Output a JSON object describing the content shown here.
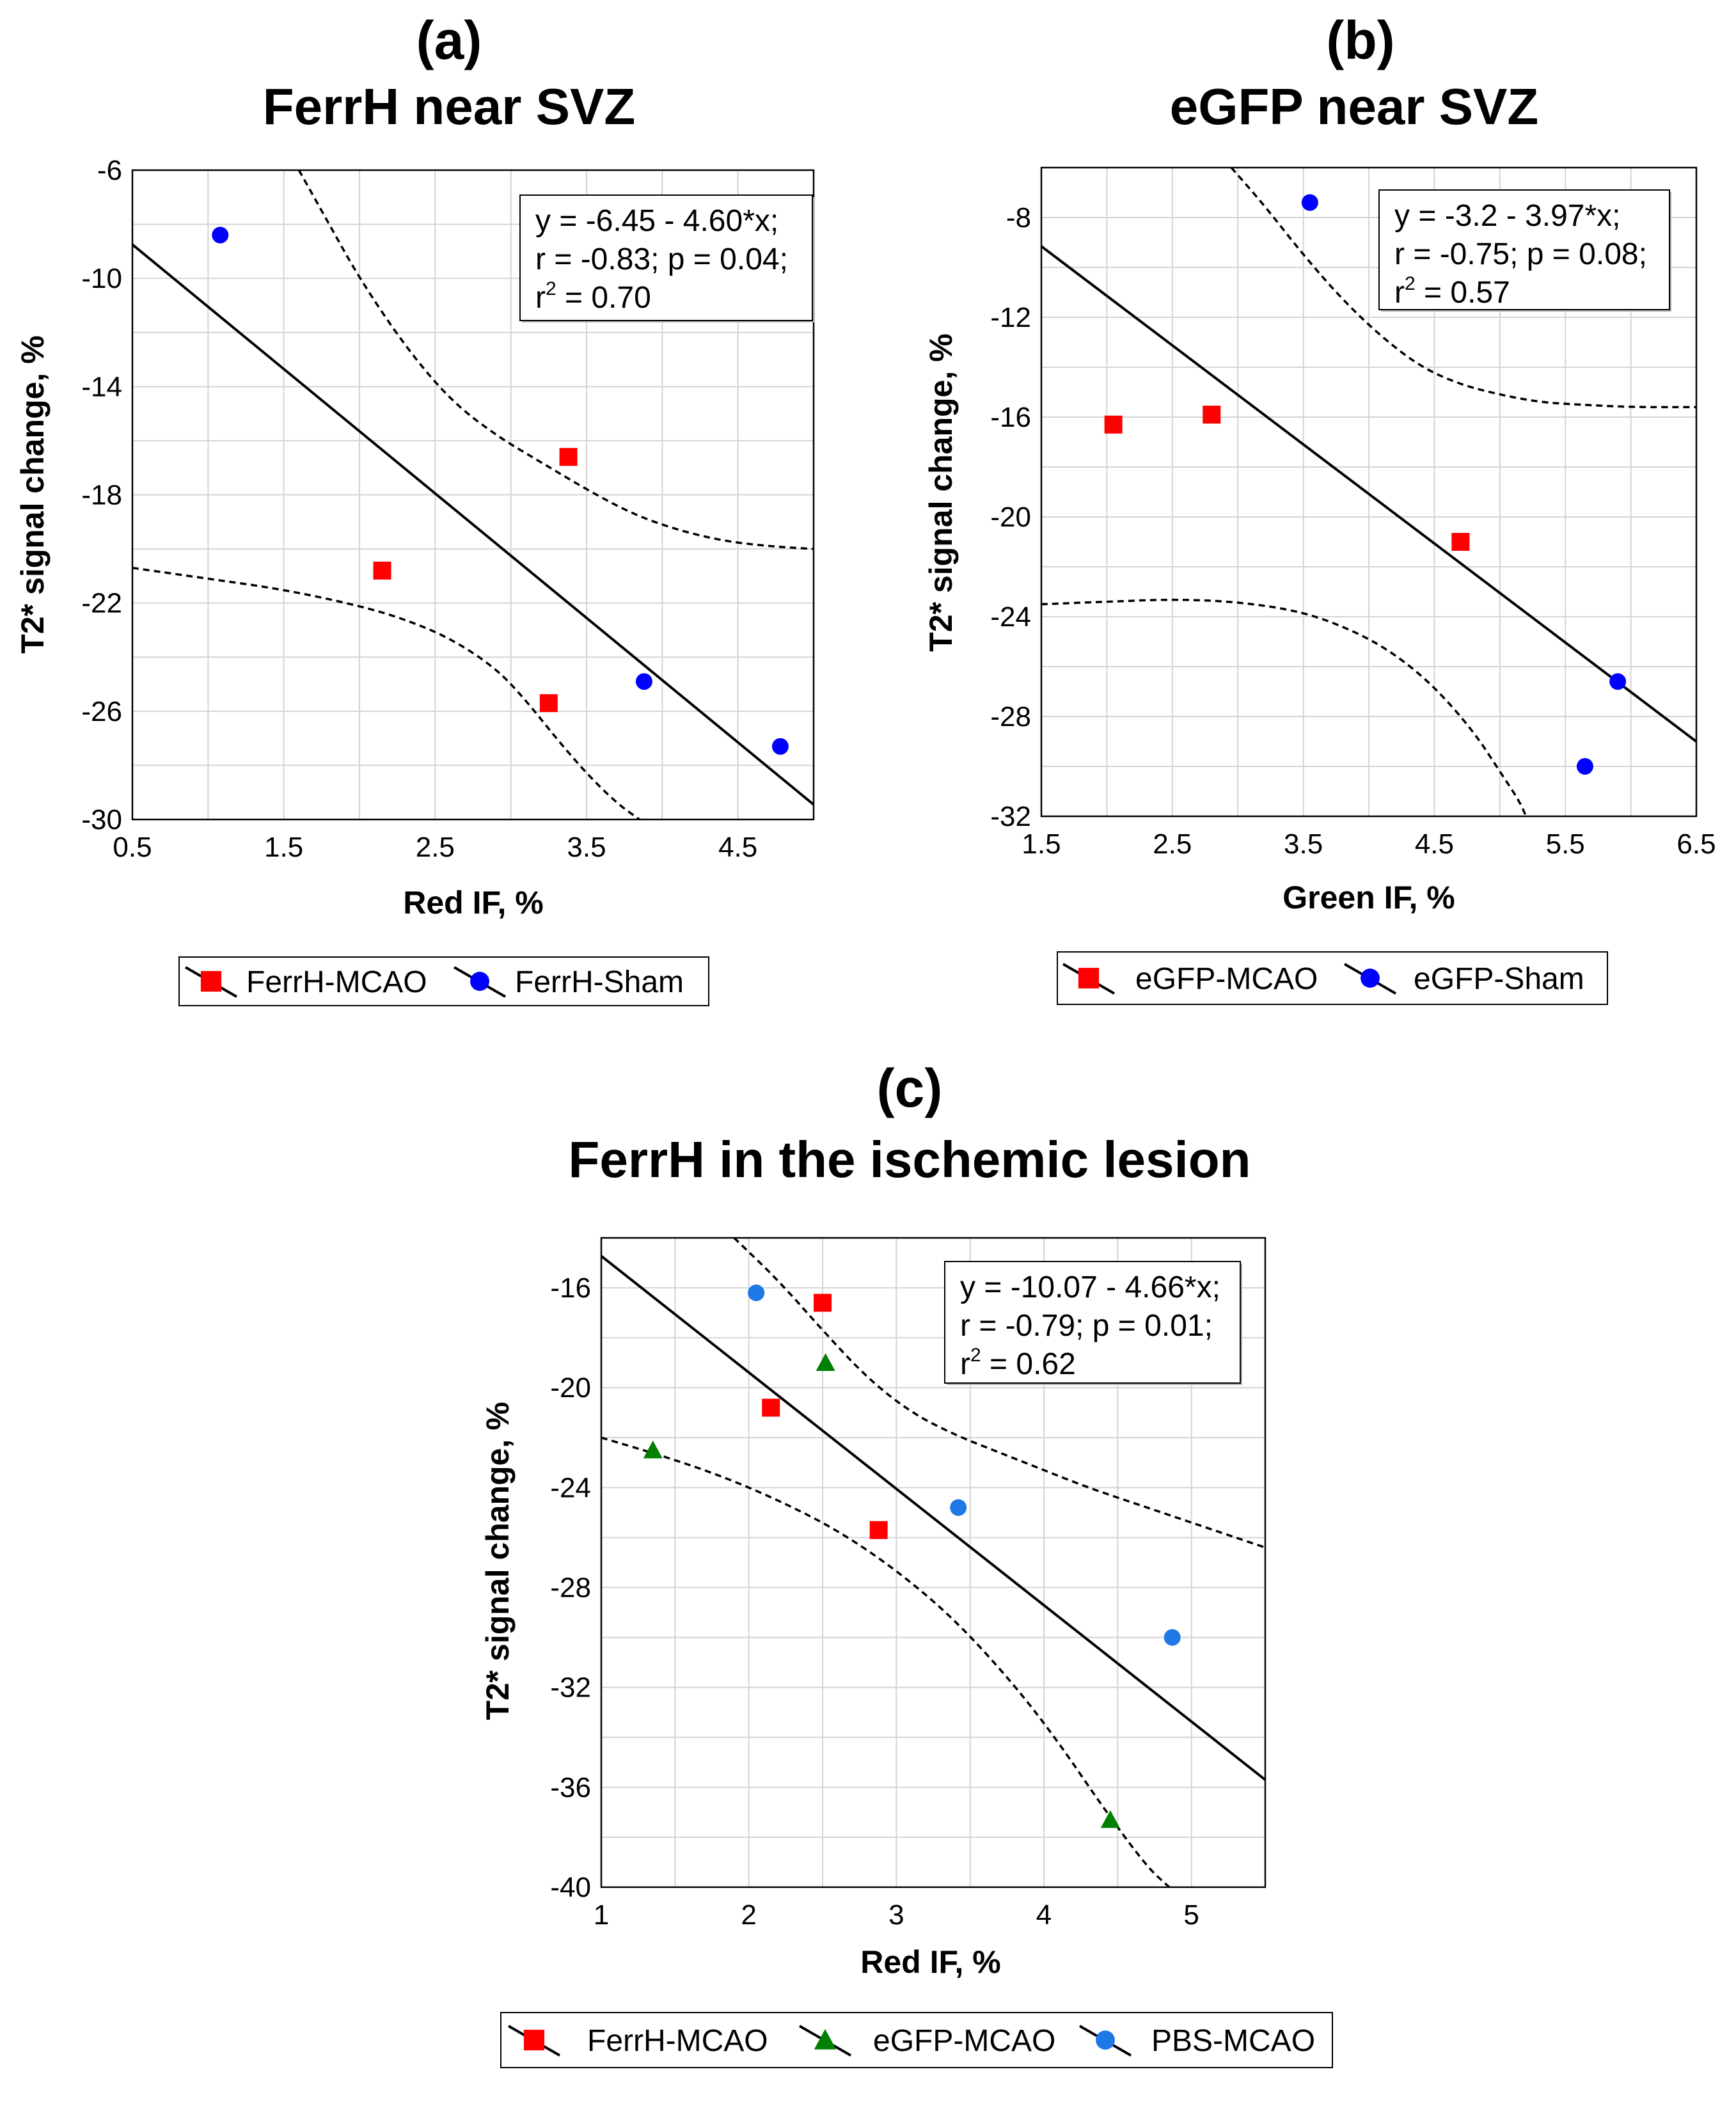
{
  "chart_data": [
    {
      "type": "scatter",
      "panel": "(a)",
      "title": "FerrH near SVZ",
      "xlabel": "Red IF, %",
      "ylabel": "T2* signal change, %",
      "xlim": [
        0.5,
        5.0
      ],
      "ylim": [
        -30,
        -6
      ],
      "xticks": [
        0.5,
        1.5,
        2.5,
        3.5,
        4.5
      ],
      "xtick_labels": [
        "0.5",
        "1.5",
        "2.5",
        "3.5",
        "4.5"
      ],
      "yticks": [
        -6,
        -10,
        -14,
        -18,
        -22,
        -26,
        -30
      ],
      "ytick_labels": [
        "-6",
        "-10",
        "-14",
        "-18",
        "-22",
        "-26",
        "-30"
      ],
      "xgrid": [
        0.5,
        1.0,
        1.5,
        2.0,
        2.5,
        3.0,
        3.5,
        4.0,
        4.5,
        5.0
      ],
      "ygrid": [
        -6,
        -8,
        -10,
        -12,
        -14,
        -16,
        -18,
        -20,
        -22,
        -24,
        -26,
        -28,
        -30
      ],
      "grid": true,
      "legend_position": "bottom",
      "annotation": {
        "line1": "y = -6.45 - 4.60*x;",
        "line2": "r = -0.83; p = 0.04;",
        "line3_prefix": "r",
        "line3_sup": "2",
        "line3_suffix": " = 0.70"
      },
      "regression": {
        "intercept": -6.45,
        "slope": -4.6
      },
      "confidence_band": {
        "upper": [
          [
            1.6,
            -6.0
          ],
          [
            1.8,
            -8.0
          ],
          [
            2.0,
            -10.0
          ],
          [
            2.3,
            -12.5
          ],
          [
            2.6,
            -14.5
          ],
          [
            2.9,
            -15.8
          ],
          [
            3.2,
            -16.8
          ],
          [
            3.5,
            -17.8
          ],
          [
            3.8,
            -18.7
          ],
          [
            4.1,
            -19.3
          ],
          [
            4.4,
            -19.7
          ],
          [
            4.7,
            -19.9
          ],
          [
            5.0,
            -20.0
          ]
        ],
        "lower": [
          [
            0.5,
            -20.7
          ],
          [
            1.0,
            -21.1
          ],
          [
            1.5,
            -21.5
          ],
          [
            2.0,
            -22.1
          ],
          [
            2.3,
            -22.6
          ],
          [
            2.6,
            -23.3
          ],
          [
            2.9,
            -24.4
          ],
          [
            3.1,
            -25.6
          ],
          [
            3.3,
            -27.0
          ],
          [
            3.5,
            -28.3
          ],
          [
            3.7,
            -29.4
          ],
          [
            3.85,
            -30.0
          ]
        ]
      },
      "series": [
        {
          "name": "FerrH-MCAO",
          "marker": "square",
          "color": "#ff0000",
          "x": [
            2.15,
            3.25,
            3.38
          ],
          "y": [
            -20.8,
            -25.7,
            -16.6
          ]
        },
        {
          "name": "FerrH-Sham",
          "marker": "circle",
          "color": "#0000ff",
          "x": [
            1.08,
            3.88,
            4.78
          ],
          "y": [
            -8.4,
            -24.9,
            -27.3
          ]
        }
      ]
    },
    {
      "type": "scatter",
      "panel": "(b)",
      "title": "eGFP near SVZ",
      "xlabel": "Green IF, %",
      "ylabel": "T2* signal change, %",
      "xlim": [
        1.5,
        6.5
      ],
      "ylim": [
        -32,
        -6
      ],
      "xticks": [
        1.5,
        2.5,
        3.5,
        4.5,
        5.5,
        6.5
      ],
      "xtick_labels": [
        "1.5",
        "2.5",
        "3.5",
        "4.5",
        "5.5",
        "6.5"
      ],
      "yticks": [
        -8,
        -12,
        -16,
        -20,
        -24,
        -28,
        -32
      ],
      "ytick_labels": [
        "-8",
        "-12",
        "-16",
        "-20",
        "-24",
        "-28",
        "-32"
      ],
      "xgrid": [
        1.5,
        2.0,
        2.5,
        3.0,
        3.5,
        4.0,
        4.5,
        5.0,
        5.5,
        6.0,
        6.5
      ],
      "ygrid": [
        -6,
        -8,
        -10,
        -12,
        -14,
        -16,
        -18,
        -20,
        -22,
        -24,
        -26,
        -28,
        -30,
        -32
      ],
      "grid": true,
      "legend_position": "bottom",
      "annotation": {
        "line1": "y = -3.2 - 3.97*x;",
        "line2": "r = -0.75; p = 0.08;",
        "line3_prefix": "r",
        "line3_sup": "2",
        "line3_suffix": " = 0.57"
      },
      "regression": {
        "intercept": -3.2,
        "slope": -3.97
      },
      "confidence_band": {
        "upper": [
          [
            2.95,
            -6.0
          ],
          [
            3.2,
            -7.5
          ],
          [
            3.5,
            -9.5
          ],
          [
            3.8,
            -11.3
          ],
          [
            4.1,
            -12.8
          ],
          [
            4.4,
            -14.0
          ],
          [
            4.7,
            -14.7
          ],
          [
            5.0,
            -15.1
          ],
          [
            5.3,
            -15.4
          ],
          [
            5.6,
            -15.5
          ],
          [
            6.0,
            -15.6
          ],
          [
            6.5,
            -15.6
          ]
        ],
        "lower": [
          [
            1.5,
            -23.5
          ],
          [
            2.0,
            -23.4
          ],
          [
            2.5,
            -23.3
          ],
          [
            3.0,
            -23.4
          ],
          [
            3.5,
            -23.8
          ],
          [
            3.9,
            -24.6
          ],
          [
            4.2,
            -25.5
          ],
          [
            4.5,
            -26.8
          ],
          [
            4.8,
            -28.6
          ],
          [
            5.0,
            -30.2
          ],
          [
            5.15,
            -31.4
          ],
          [
            5.2,
            -32.0
          ]
        ]
      },
      "series": [
        {
          "name": "eGFP-MCAO",
          "marker": "square",
          "color": "#ff0000",
          "x": [
            2.05,
            2.8,
            4.7
          ],
          "y": [
            -16.3,
            -15.9,
            -21.0
          ]
        },
        {
          "name": "eGFP-Sham",
          "marker": "circle",
          "color": "#0000ff",
          "x": [
            3.55,
            5.65,
            5.9
          ],
          "y": [
            -7.4,
            -30.0,
            -26.6
          ]
        }
      ]
    },
    {
      "type": "scatter",
      "panel": "(c)",
      "title": "FerrH in the ischemic lesion",
      "xlabel": "Red IF, %",
      "ylabel": "T2* signal change, %",
      "xlim": [
        1,
        5.5
      ],
      "ylim": [
        -40,
        -14
      ],
      "xticks": [
        1,
        2,
        3,
        4,
        5
      ],
      "xtick_labels": [
        "1",
        "2",
        "3",
        "4",
        "5"
      ],
      "yticks": [
        -16,
        -20,
        -24,
        -28,
        -32,
        -36,
        -40
      ],
      "ytick_labels": [
        "-16",
        "-20",
        "-24",
        "-28",
        "-32",
        "-36",
        "-40"
      ],
      "xgrid": [
        1.0,
        1.5,
        2.0,
        2.5,
        3.0,
        3.5,
        4.0,
        4.5,
        5.0,
        5.5
      ],
      "ygrid": [
        -14,
        -16,
        -18,
        -20,
        -22,
        -24,
        -26,
        -28,
        -30,
        -32,
        -34,
        -36,
        -38,
        -40
      ],
      "grid": true,
      "legend_position": "bottom",
      "annotation": {
        "line1": "y = -10.07 - 4.66*x;",
        "line2": "r = -0.79; p = 0.01;",
        "line3_prefix": "r",
        "line3_sup": "2",
        "line3_suffix": " = 0.62"
      },
      "regression": {
        "intercept": -10.07,
        "slope": -4.66
      },
      "confidence_band": {
        "upper": [
          [
            1.9,
            -14.0
          ],
          [
            2.2,
            -15.7
          ],
          [
            2.5,
            -17.7
          ],
          [
            2.8,
            -19.6
          ],
          [
            3.1,
            -21.0
          ],
          [
            3.4,
            -21.9
          ],
          [
            3.7,
            -22.6
          ],
          [
            4.0,
            -23.3
          ],
          [
            4.3,
            -24.0
          ],
          [
            4.6,
            -24.6
          ],
          [
            4.9,
            -25.2
          ],
          [
            5.2,
            -25.8
          ],
          [
            5.5,
            -26.4
          ]
        ],
        "lower": [
          [
            1.0,
            -22.0
          ],
          [
            1.4,
            -22.7
          ],
          [
            1.8,
            -23.5
          ],
          [
            2.2,
            -24.5
          ],
          [
            2.6,
            -25.7
          ],
          [
            3.0,
            -27.3
          ],
          [
            3.4,
            -29.3
          ],
          [
            3.8,
            -31.9
          ],
          [
            4.1,
            -34.2
          ],
          [
            4.4,
            -36.8
          ],
          [
            4.7,
            -39.2
          ],
          [
            4.85,
            -40.0
          ]
        ]
      },
      "series": [
        {
          "name": "FerrH-MCAO",
          "marker": "square",
          "color": "#ff0000",
          "x": [
            2.15,
            2.5,
            2.88
          ],
          "y": [
            -20.8,
            -16.6,
            -25.7
          ]
        },
        {
          "name": "eGFP-MCAO",
          "marker": "triangle",
          "color": "#008000",
          "x": [
            1.35,
            2.52,
            4.45
          ],
          "y": [
            -22.5,
            -19.0,
            -37.3
          ]
        },
        {
          "name": "PBS-MCAO",
          "marker": "circle",
          "color": "#1e78e6",
          "x": [
            2.05,
            3.42,
            4.87
          ],
          "y": [
            -16.2,
            -24.8,
            -30.0
          ]
        }
      ]
    }
  ]
}
